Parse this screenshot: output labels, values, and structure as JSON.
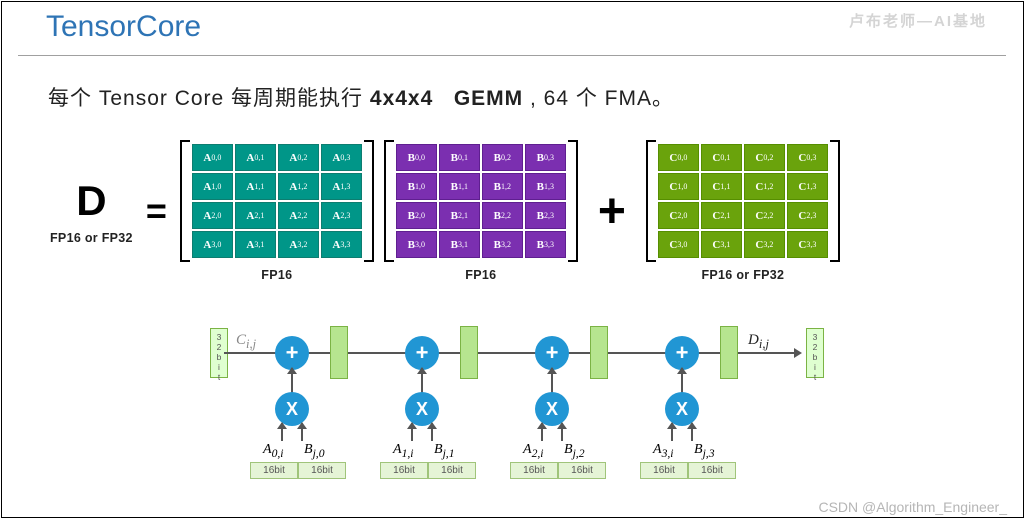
{
  "title": "TensorCore",
  "subtitle_prefix": "每个 Tensor Core 每周期能执行 ",
  "subtitle_bold1": "4x4x4",
  "subtitle_bold2": "GEMM",
  "subtitle_suffix": " , 64 个 FMA。",
  "eq": {
    "D": "D",
    "eq": "=",
    "plus": "+",
    "labels": {
      "D": "FP16 or FP32",
      "A": "FP16",
      "B": "FP16",
      "C": "FP16 or FP32"
    }
  },
  "matrices": {
    "rows": 4,
    "cols": 4,
    "letters": {
      "A": "A",
      "B": "B",
      "C": "C"
    },
    "colors": {
      "A_bg": "#009688",
      "A_border": "#0d7d70",
      "B_bg": "#7b2fb0",
      "B_border": "#5f1f90",
      "C_bg": "#6aa30c",
      "C_border": "#568e00",
      "text": "#ffffff"
    }
  },
  "flow": {
    "cij": "C",
    "cij_sub": "i,j",
    "dij": "D",
    "dij_sub": "i,j",
    "v32_lines": [
      "3",
      "2",
      "b",
      "i",
      "t"
    ],
    "stages": [
      {
        "a": "A",
        "a_sub": "0,i",
        "b": "B",
        "b_sub": "j,0"
      },
      {
        "a": "A",
        "a_sub": "1,i",
        "b": "B",
        "b_sub": "j,1"
      },
      {
        "a": "A",
        "a_sub": "2,i",
        "b": "B",
        "b_sub": "j,2"
      },
      {
        "a": "A",
        "a_sub": "3,i",
        "b": "B",
        "b_sub": "j,3"
      }
    ],
    "bit16": "16bit",
    "node_plus": "+",
    "node_x": "X",
    "node_color": "#2196d4",
    "green_fill": "#b6e58f",
    "line_color": "#555555"
  },
  "watermark_top": "卢布老师—AI基地",
  "watermark_bottom": "CSDN @Algorithm_Engineer_"
}
